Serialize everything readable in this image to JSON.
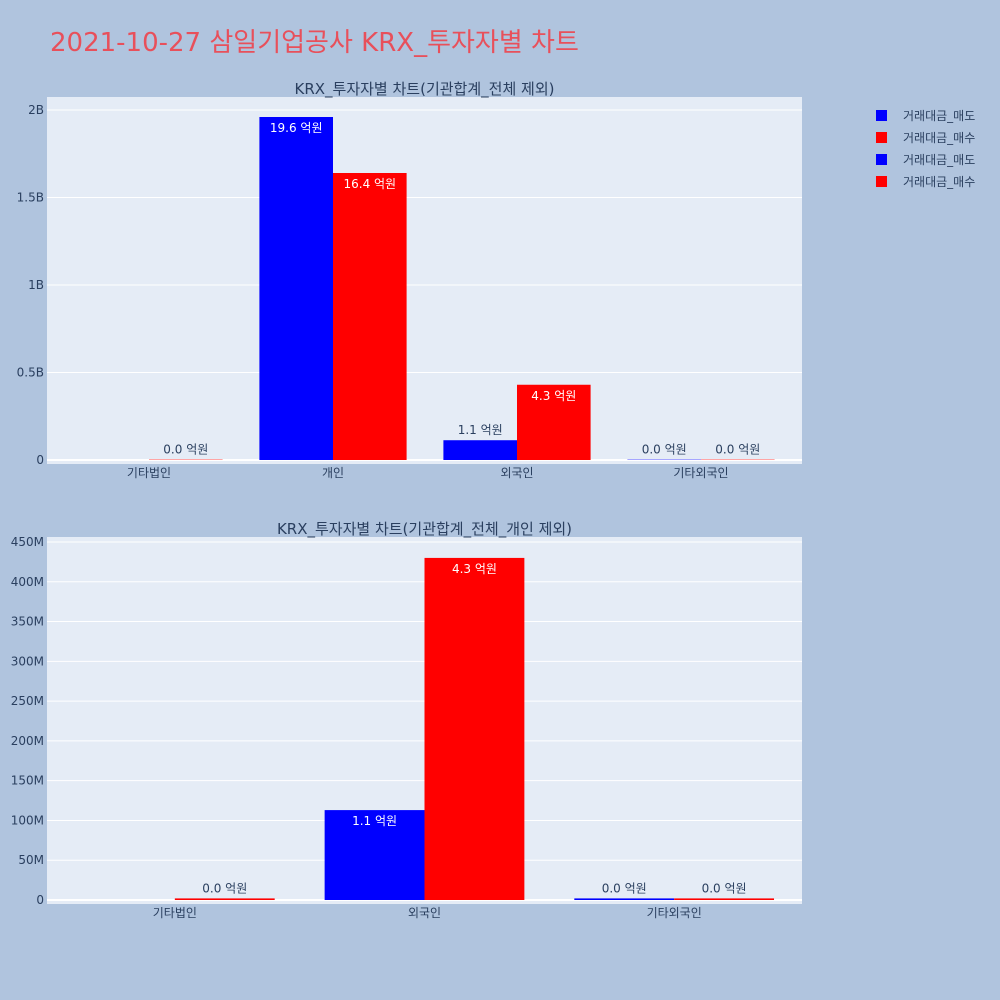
{
  "page_title": "2021-10-27 삼일기업공사 KRX_투자자별 차트",
  "colors": {
    "background": "#b0c4de",
    "plot_bg": "#e5ecf6",
    "title": "#e8505b",
    "sell": "#0000ff",
    "buy": "#ff0000",
    "text": "#2a3f5f"
  },
  "legend": [
    {
      "label": "거래대금_매도",
      "color": "#0000ff"
    },
    {
      "label": "거래대금_매수",
      "color": "#ff0000"
    },
    {
      "label": "거래대금_매도",
      "color": "#0000ff"
    },
    {
      "label": "거래대금_매수",
      "color": "#ff0000"
    }
  ],
  "chart_data": [
    {
      "type": "bar",
      "title": "KRX_투자자별 차트(기관합계_전체 제외)",
      "categories": [
        "기타법인",
        "개인",
        "외국인",
        "기타외국인"
      ],
      "series": [
        {
          "name": "거래대금_매도",
          "color": "#0000ff",
          "values": [
            0,
            1960000000,
            113000000,
            2000000
          ],
          "labels": [
            "",
            "19.6 억원",
            "1.1 억원",
            "0.0 억원"
          ]
        },
        {
          "name": "거래대금_매수",
          "color": "#ff0000",
          "values": [
            2000000,
            1640000000,
            430000000,
            2000000
          ],
          "labels": [
            "0.0 억원",
            "16.4 억원",
            "4.3 억원",
            "0.0 억원"
          ]
        }
      ],
      "ylim": [
        0,
        2000000000
      ],
      "yticks": [
        0,
        500000000,
        1000000000,
        1500000000,
        2000000000
      ],
      "ytick_labels": [
        "0",
        "0.5B",
        "1B",
        "1.5B",
        "2B"
      ],
      "grid": true
    },
    {
      "type": "bar",
      "title": "KRX_투자자별 차트(기관합계_전체_개인 제외)",
      "categories": [
        "기타법인",
        "외국인",
        "기타외국인"
      ],
      "series": [
        {
          "name": "거래대금_매도",
          "color": "#0000ff",
          "values": [
            0,
            113000000,
            2000000
          ],
          "labels": [
            "",
            "1.1 억원",
            "0.0 억원"
          ]
        },
        {
          "name": "거래대금_매수",
          "color": "#ff0000",
          "values": [
            2000000,
            430000000,
            2000000
          ],
          "labels": [
            "0.0 억원",
            "4.3 억원",
            "0.0 억원"
          ]
        }
      ],
      "ylim": [
        0,
        450000000
      ],
      "yticks": [
        0,
        50000000,
        100000000,
        150000000,
        200000000,
        250000000,
        300000000,
        350000000,
        400000000,
        450000000
      ],
      "ytick_labels": [
        "0",
        "50M",
        "100M",
        "150M",
        "200M",
        "250M",
        "300M",
        "350M",
        "400M",
        "450M"
      ],
      "grid": true
    }
  ]
}
